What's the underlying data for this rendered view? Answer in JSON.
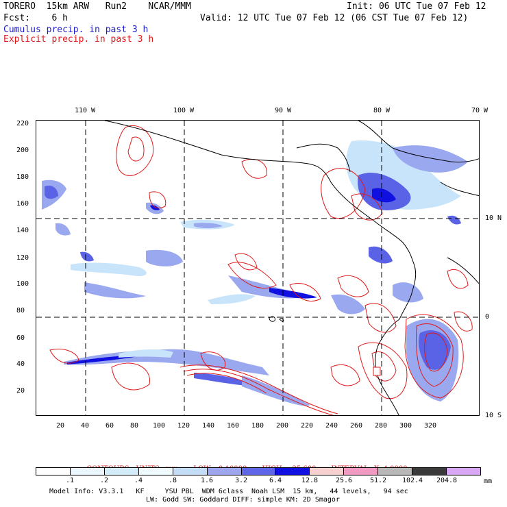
{
  "header": {
    "line1_left": "TORERO  15km ARW   Run2    NCAR/MMM",
    "line1_right": "Init: 06 UTC Tue 07 Feb 12",
    "line2_left": "Fcst:    6 h",
    "line2_right": "Valid: 12 UTC Tue 07 Feb 12 (06 CST Tue 07 Feb 12)",
    "cumulus_label": "Cumulus precip. in past 3 h",
    "explicit_label": "Explicit precip. in past 3 h"
  },
  "map": {
    "top_ticks": [
      "110 W",
      "100 W",
      "90 W",
      "80 W",
      "70 W"
    ],
    "bottom_ticks": [
      "20",
      "40",
      "60",
      "80",
      "100",
      "120",
      "140",
      "160",
      "180",
      "200",
      "220",
      "240",
      "260",
      "280",
      "300",
      "320"
    ],
    "left_ticks": [
      "220",
      "200",
      "180",
      "160",
      "140",
      "120",
      "100",
      "80",
      "60",
      "40",
      "20"
    ],
    "right_ticks": [
      "10 N",
      "0",
      "10 S"
    ],
    "x_range": [
      0,
      360
    ],
    "y_range": [
      0,
      225
    ],
    "gridlines": "dashed",
    "colors": {
      "cumulus_light": "#c8e4fa",
      "cumulus_mid": "#9aa8f0",
      "cumulus_dark": "#5a62e6",
      "cumulus_deep": "#1010e0",
      "explicit": "#e01818",
      "coast": "#000000"
    }
  },
  "legend": {
    "contours": "CONTOURS:  UNITS=mm",
    "low": "LOW= 0.10000",
    "high": "HIGH=  25.600",
    "interval": "INTERVAL=X  4.0000",
    "bins": [
      ".1",
      ".2",
      ".4",
      ".8",
      "1.6",
      "3.2",
      "6.4",
      "12.8",
      "25.6",
      "51.2",
      "102.4",
      "204.8"
    ],
    "unit": "mm",
    "colors": [
      "#ffffff",
      "#eaf6fd",
      "#d2ecfa",
      "#eefafd",
      "#c4ddf7",
      "#9ea6f0",
      "#6066e8",
      "#1010e0",
      "#f7d0d0",
      "#f39ac3",
      "#b8b8b8",
      "#3a3a3a",
      "#d8a8f6"
    ]
  },
  "footer": {
    "line1": "Model Info: V3.3.1   KF     YSU PBL  WDM 6class  Noah LSM  15 km,   44 levels,   94 sec",
    "line2": "LW: Godd SW: Goddard DIFF: simple KM: 2D Smagor"
  }
}
